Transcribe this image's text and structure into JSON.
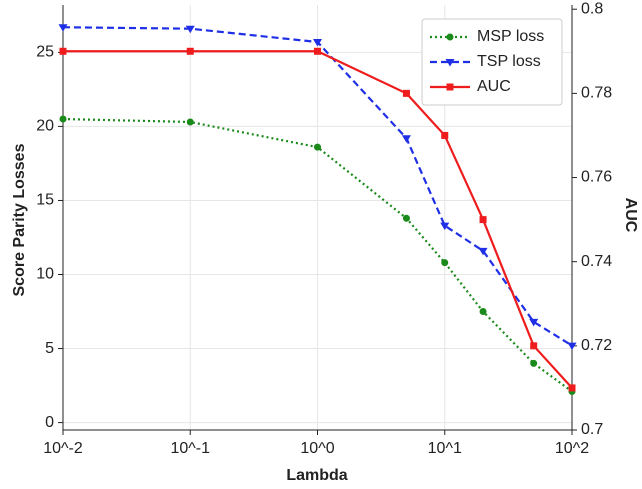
{
  "chart_data": {
    "type": "line",
    "xlabel": "Lambda",
    "ylabel": "Score Parity Losses",
    "y2label": "AUC",
    "x": [
      0.01,
      0.1,
      1,
      5,
      10,
      20,
      50,
      100
    ],
    "xscale": "log",
    "xlim": [
      0.01,
      100
    ],
    "xticks": [
      {
        "value": 0.01,
        "label": "10^-2"
      },
      {
        "value": 0.1,
        "label": "10^-1"
      },
      {
        "value": 1,
        "label": "10^0"
      },
      {
        "value": 10,
        "label": "10^1"
      },
      {
        "value": 100,
        "label": "10^2"
      }
    ],
    "ylim": [
      -0.5,
      28.2
    ],
    "yticks": [
      0,
      5,
      10,
      15,
      20,
      25
    ],
    "y2lim": [
      0.7,
      0.801
    ],
    "y2ticks": [
      0.7,
      0.72,
      0.74,
      0.76,
      0.78,
      0.8
    ],
    "grid": true,
    "legend": "upper right",
    "series": [
      {
        "name": "MSP loss",
        "color": "#1a8a1a",
        "linestyle": "dotted",
        "marker": "circle",
        "values": [
          20.5,
          20.3,
          18.6,
          13.8,
          10.8,
          7.5,
          4.0,
          2.1
        ]
      },
      {
        "name": "TSP loss",
        "color": "#1f2fe6",
        "linestyle": "dashed",
        "marker": "triangle-down",
        "values": [
          26.7,
          26.6,
          25.7,
          19.2,
          13.3,
          11.6,
          6.8,
          5.2
        ]
      },
      {
        "name": "AUC",
        "color": "#ee1c1c",
        "linestyle": "solid",
        "marker": "square",
        "axis": "y2",
        "values": [
          0.79,
          0.79,
          0.79,
          0.78,
          0.77,
          0.75,
          0.72,
          0.71
        ]
      }
    ]
  }
}
